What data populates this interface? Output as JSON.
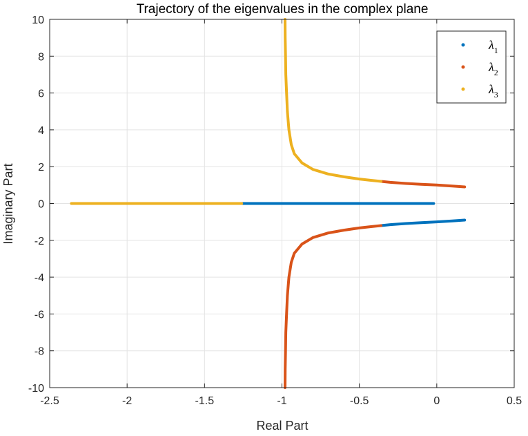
{
  "chart_data": {
    "type": "scatter",
    "title": "Trajectory of the eigenvalues in the complex plane",
    "xlabel": "Real Part",
    "ylabel": "Imaginary Part",
    "xlim": [
      -2.5,
      0.5
    ],
    "ylim": [
      -10,
      10
    ],
    "xticks": [
      -2.5,
      -2,
      -1.5,
      -1,
      -0.5,
      0,
      0.5
    ],
    "xtick_labels": [
      "-2.5",
      "-2",
      "-1.5",
      "-1",
      "-0.5",
      "0",
      "0.5"
    ],
    "yticks": [
      -10,
      -8,
      -6,
      -4,
      -2,
      0,
      2,
      4,
      6,
      8,
      10
    ],
    "ytick_labels": [
      "-10",
      "-8",
      "-6",
      "-4",
      "-2",
      "0",
      "2",
      "4",
      "6",
      "8",
      "10"
    ],
    "grid": true,
    "legend_position": "top-right",
    "series": [
      {
        "name": "λ1",
        "legend_base": "λ",
        "legend_sub": "1",
        "color": "#0072BD",
        "segments": [
          [
            [
              -1.26,
              0
            ],
            [
              -1.0,
              0
            ],
            [
              -0.8,
              0
            ],
            [
              -0.6,
              0
            ],
            [
              -0.4,
              0
            ],
            [
              -0.2,
              0
            ],
            [
              -0.02,
              0
            ]
          ],
          [
            [
              -0.36,
              -1.2
            ],
            [
              -0.3,
              -1.15
            ],
            [
              -0.2,
              -1.09
            ],
            [
              -0.1,
              -1.04
            ],
            [
              0,
              -1.0
            ],
            [
              0.1,
              -0.95
            ],
            [
              0.18,
              -0.9
            ]
          ]
        ]
      },
      {
        "name": "λ2",
        "legend_base": "λ",
        "legend_sub": "2",
        "color": "#D95319",
        "segments": [
          [
            [
              -0.98,
              -10
            ],
            [
              -0.979,
              -9
            ],
            [
              -0.977,
              -8
            ],
            [
              -0.975,
              -7
            ],
            [
              -0.97,
              -6
            ],
            [
              -0.965,
              -5
            ],
            [
              -0.955,
              -4
            ],
            [
              -0.94,
              -3.2
            ],
            [
              -0.92,
              -2.7
            ],
            [
              -0.87,
              -2.2
            ],
            [
              -0.8,
              -1.85
            ],
            [
              -0.7,
              -1.6
            ],
            [
              -0.6,
              -1.45
            ],
            [
              -0.5,
              -1.33
            ],
            [
              -0.43,
              -1.26
            ],
            [
              -0.36,
              -1.2
            ]
          ],
          [
            [
              -0.36,
              1.2
            ],
            [
              -0.3,
              1.15
            ],
            [
              -0.2,
              1.09
            ],
            [
              -0.1,
              1.04
            ],
            [
              0,
              1.0
            ],
            [
              0.1,
              0.95
            ],
            [
              0.18,
              0.9
            ]
          ]
        ]
      },
      {
        "name": "λ3",
        "legend_base": "λ",
        "legend_sub": "3",
        "color": "#EDB120",
        "segments": [
          [
            [
              -2.36,
              0
            ],
            [
              -2.0,
              0
            ],
            [
              -1.6,
              0
            ],
            [
              -1.26,
              0
            ]
          ],
          [
            [
              -0.98,
              10
            ],
            [
              -0.979,
              9
            ],
            [
              -0.977,
              8
            ],
            [
              -0.975,
              7
            ],
            [
              -0.97,
              6
            ],
            [
              -0.965,
              5
            ],
            [
              -0.955,
              4
            ],
            [
              -0.94,
              3.2
            ],
            [
              -0.92,
              2.7
            ],
            [
              -0.87,
              2.2
            ],
            [
              -0.8,
              1.85
            ],
            [
              -0.7,
              1.6
            ],
            [
              -0.6,
              1.45
            ],
            [
              -0.5,
              1.33
            ],
            [
              -0.43,
              1.26
            ],
            [
              -0.36,
              1.2
            ]
          ]
        ]
      }
    ]
  }
}
